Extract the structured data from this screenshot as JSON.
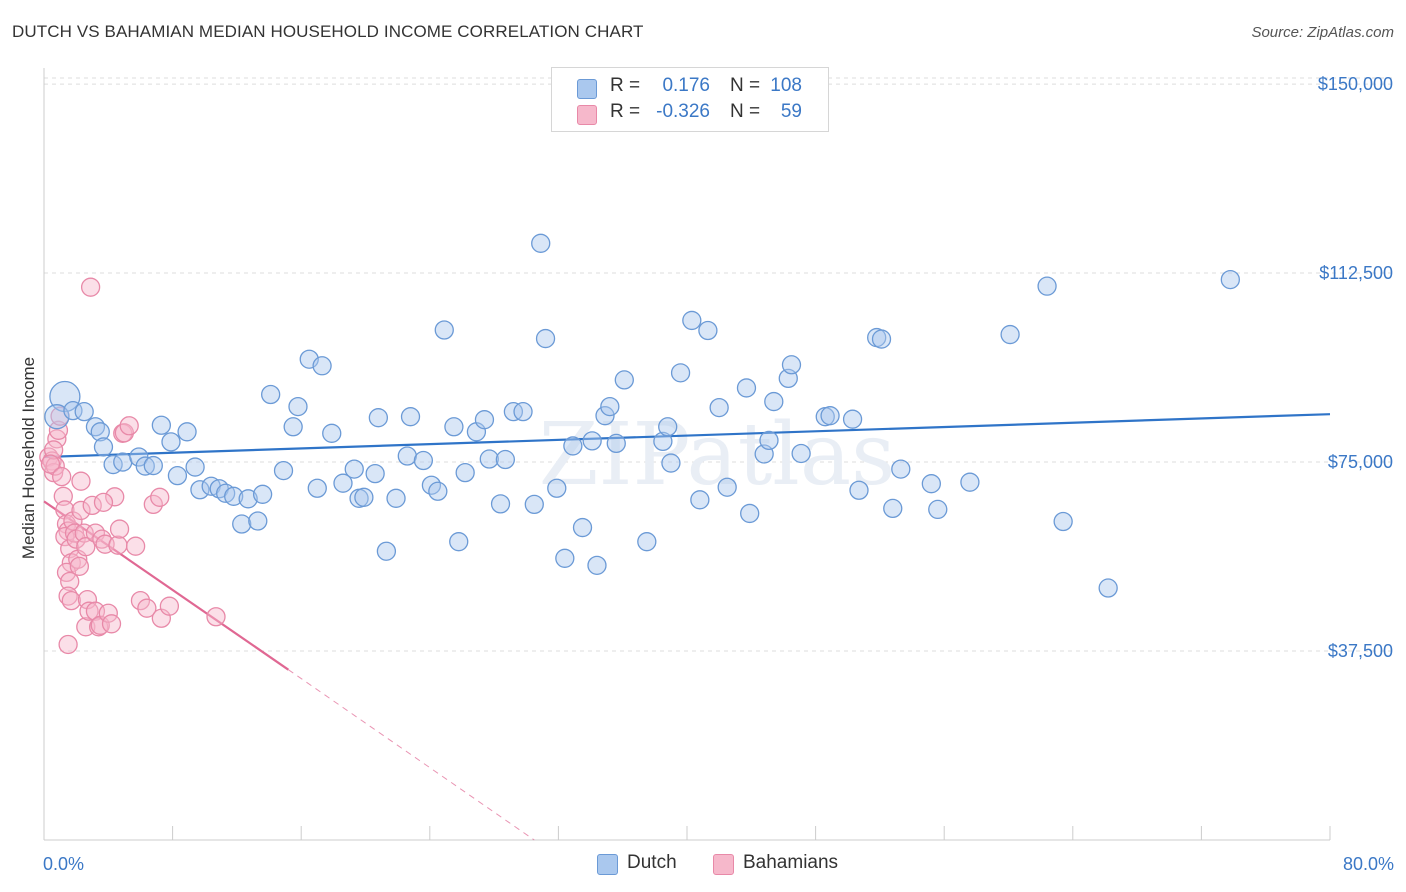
{
  "title": "DUTCH VS BAHAMIAN MEDIAN HOUSEHOLD INCOME CORRELATION CHART",
  "source": "Source: ZipAtlas.com",
  "watermark": "ZIPatlas",
  "legend": {
    "rows": [
      {
        "r_label": "R =",
        "r_value": "0.176",
        "n_label": "N =",
        "n_value": "108"
      },
      {
        "r_label": "R =",
        "r_value": "-0.326",
        "n_label": "N =",
        "n_value": "59"
      }
    ]
  },
  "bottom_legend": {
    "dutch": "Dutch",
    "bahamians": "Bahamians"
  },
  "colors": {
    "dutch_fill": "#aac8ee",
    "dutch_stroke": "#6b9ad6",
    "dutch_line": "#2f74c8",
    "bahamians_fill": "#f6b8cb",
    "bahamians_stroke": "#e889a8",
    "bahamians_line": "#e06893",
    "tick_label": "#3b78c6",
    "grid": "#dddddd"
  },
  "chart_data": {
    "type": "scatter",
    "title": "DUTCH VS BAHAMIAN MEDIAN HOUSEHOLD INCOME CORRELATION CHART",
    "xlabel": "",
    "ylabel": "Median Household Income",
    "xlim": [
      0,
      80
    ],
    "ylim": [
      0,
      152000
    ],
    "x_tick_labels": [
      "0.0%",
      "80.0%"
    ],
    "y_ticks": [
      37500,
      75000,
      112500,
      150000
    ],
    "y_tick_labels": [
      "$37,500",
      "$75,000",
      "$112,500",
      "$150,000"
    ],
    "grid": true,
    "legend_position": "top-center",
    "series": [
      {
        "name": "Dutch",
        "R": 0.176,
        "N": 108,
        "trend": {
          "x": [
            0,
            80
          ],
          "y": [
            76000,
            84500
          ]
        },
        "points": [
          [
            1.3,
            88000,
            3
          ],
          [
            0.8,
            84000,
            2
          ],
          [
            1.8,
            85200,
            1
          ],
          [
            2.5,
            85000,
            1
          ],
          [
            3.2,
            82000,
            1
          ],
          [
            3.5,
            81000,
            1
          ],
          [
            3.7,
            78000,
            1
          ],
          [
            4.3,
            74500,
            1
          ],
          [
            4.9,
            75000,
            1
          ],
          [
            5.9,
            76000,
            1
          ],
          [
            6.3,
            74200,
            1
          ],
          [
            6.8,
            74300,
            1
          ],
          [
            7.3,
            82300,
            1
          ],
          [
            7.9,
            79000,
            1
          ],
          [
            8.3,
            72300,
            1
          ],
          [
            8.9,
            81000,
            1
          ],
          [
            9.4,
            74000,
            1
          ],
          [
            9.7,
            69500,
            1
          ],
          [
            10.4,
            70200,
            1
          ],
          [
            10.9,
            69700,
            1
          ],
          [
            11.3,
            68800,
            1
          ],
          [
            11.8,
            68200,
            1
          ],
          [
            12.3,
            62700,
            1
          ],
          [
            12.7,
            67700,
            1
          ],
          [
            13.3,
            63300,
            1
          ],
          [
            13.6,
            68600,
            1
          ],
          [
            14.1,
            88400,
            1
          ],
          [
            14.9,
            73300,
            1
          ],
          [
            15.5,
            82000,
            1
          ],
          [
            15.8,
            86000,
            1
          ],
          [
            16.5,
            95400,
            1
          ],
          [
            17.0,
            69800,
            1
          ],
          [
            17.3,
            94100,
            1
          ],
          [
            17.9,
            80700,
            1
          ],
          [
            18.6,
            70800,
            1
          ],
          [
            19.3,
            73600,
            1
          ],
          [
            19.6,
            67800,
            1
          ],
          [
            19.9,
            68000,
            1
          ],
          [
            20.6,
            72700,
            1
          ],
          [
            20.8,
            83800,
            1
          ],
          [
            21.3,
            57300,
            1
          ],
          [
            21.9,
            67800,
            1
          ],
          [
            22.6,
            76200,
            1
          ],
          [
            22.8,
            84000,
            1
          ],
          [
            23.6,
            75300,
            1
          ],
          [
            24.1,
            70400,
            1
          ],
          [
            24.5,
            69200,
            1
          ],
          [
            24.9,
            101200,
            1
          ],
          [
            25.5,
            82000,
            1
          ],
          [
            25.8,
            59200,
            1
          ],
          [
            26.2,
            72900,
            1
          ],
          [
            26.9,
            81000,
            1
          ],
          [
            27.4,
            83400,
            1
          ],
          [
            27.7,
            75600,
            1
          ],
          [
            28.4,
            66700,
            1
          ],
          [
            28.7,
            75500,
            1
          ],
          [
            29.2,
            85000,
            1
          ],
          [
            29.8,
            85000,
            1
          ],
          [
            30.5,
            66600,
            1
          ],
          [
            30.9,
            118400,
            1
          ],
          [
            31.2,
            99500,
            1
          ],
          [
            31.9,
            69800,
            1
          ],
          [
            32.4,
            55900,
            1
          ],
          [
            32.9,
            78200,
            1
          ],
          [
            33.5,
            62000,
            1
          ],
          [
            34.1,
            79200,
            1
          ],
          [
            34.4,
            54500,
            1
          ],
          [
            34.9,
            84200,
            1
          ],
          [
            35.2,
            86000,
            1
          ],
          [
            35.6,
            78700,
            1
          ],
          [
            36.1,
            91300,
            1
          ],
          [
            37.5,
            59200,
            1
          ],
          [
            38.5,
            79100,
            1
          ],
          [
            38.8,
            82000,
            1
          ],
          [
            39.0,
            74800,
            1
          ],
          [
            39.6,
            92700,
            1
          ],
          [
            40.3,
            103100,
            1
          ],
          [
            40.8,
            67500,
            1
          ],
          [
            41.3,
            101100,
            1
          ],
          [
            42.0,
            85800,
            1
          ],
          [
            42.5,
            70000,
            1
          ],
          [
            43.7,
            89700,
            1
          ],
          [
            43.9,
            64800,
            1
          ],
          [
            44.8,
            76600,
            1
          ],
          [
            45.1,
            79300,
            1
          ],
          [
            45.4,
            87000,
            1
          ],
          [
            46.3,
            91600,
            1
          ],
          [
            46.5,
            94300,
            1
          ],
          [
            47.1,
            76700,
            1
          ],
          [
            48.6,
            84000,
            1
          ],
          [
            48.9,
            84200,
            1
          ],
          [
            50.3,
            83500,
            1
          ],
          [
            50.7,
            69400,
            1
          ],
          [
            51.8,
            99700,
            1
          ],
          [
            52.1,
            99400,
            1
          ],
          [
            52.8,
            65800,
            1
          ],
          [
            53.3,
            73600,
            1
          ],
          [
            55.2,
            70700,
            1
          ],
          [
            55.6,
            65600,
            1
          ],
          [
            57.6,
            71000,
            1
          ],
          [
            60.1,
            100300,
            1
          ],
          [
            62.4,
            109900,
            1
          ],
          [
            63.4,
            63200,
            1
          ],
          [
            66.2,
            50000,
            1
          ],
          [
            73.8,
            111200,
            1
          ]
        ]
      },
      {
        "name": "Bahamians",
        "R": -0.326,
        "N": 59,
        "trend": {
          "x": [
            0,
            15.2
          ],
          "y": [
            67200,
            33800
          ]
        },
        "trend_dashed": {
          "x": [
            15.2,
            30.5
          ],
          "y": [
            33800,
            0
          ]
        },
        "points": [
          [
            0.3,
            76000,
            1
          ],
          [
            0.5,
            75200,
            1
          ],
          [
            0.6,
            72900,
            1
          ],
          [
            0.7,
            74200,
            1
          ],
          [
            0.8,
            79600,
            1
          ],
          [
            0.9,
            81300,
            1
          ],
          [
            0.6,
            77400,
            1
          ],
          [
            0.4,
            74600,
            1
          ],
          [
            1.0,
            84100,
            1
          ],
          [
            1.1,
            72100,
            1
          ],
          [
            1.2,
            68200,
            1
          ],
          [
            1.3,
            65500,
            1
          ],
          [
            1.4,
            62700,
            1
          ],
          [
            1.5,
            61300,
            1
          ],
          [
            1.3,
            60200,
            1
          ],
          [
            1.6,
            57800,
            1
          ],
          [
            1.7,
            55000,
            1
          ],
          [
            1.4,
            53100,
            1
          ],
          [
            1.6,
            51300,
            1
          ],
          [
            1.5,
            48400,
            1
          ],
          [
            1.7,
            47500,
            1
          ],
          [
            1.8,
            63300,
            1
          ],
          [
            1.9,
            60900,
            1
          ],
          [
            2.0,
            59700,
            1
          ],
          [
            2.1,
            55700,
            1
          ],
          [
            2.2,
            54300,
            1
          ],
          [
            2.3,
            71200,
            1
          ],
          [
            2.3,
            65400,
            1
          ],
          [
            2.5,
            60900,
            1
          ],
          [
            2.6,
            58200,
            1
          ],
          [
            2.7,
            47700,
            1
          ],
          [
            2.6,
            42300,
            1
          ],
          [
            2.8,
            45400,
            1
          ],
          [
            3.0,
            66400,
            1
          ],
          [
            3.2,
            45400,
            1
          ],
          [
            3.2,
            60900,
            1
          ],
          [
            3.4,
            42300,
            1
          ],
          [
            3.5,
            42600,
            1
          ],
          [
            3.6,
            59700,
            1
          ],
          [
            3.8,
            58700,
            1
          ],
          [
            4.0,
            45000,
            1
          ],
          [
            4.2,
            42900,
            1
          ],
          [
            4.4,
            68100,
            1
          ],
          [
            4.6,
            58500,
            1
          ],
          [
            4.7,
            61700,
            1
          ],
          [
            4.9,
            80700,
            1
          ],
          [
            5.0,
            80800,
            1
          ],
          [
            5.3,
            82200,
            1
          ],
          [
            5.7,
            58300,
            1
          ],
          [
            6.0,
            47500,
            1
          ],
          [
            6.4,
            46000,
            1
          ],
          [
            6.8,
            66600,
            1
          ],
          [
            7.2,
            68000,
            1
          ],
          [
            7.3,
            44000,
            1
          ],
          [
            1.5,
            38800,
            1
          ],
          [
            2.9,
            109700,
            1
          ],
          [
            3.7,
            67000,
            1
          ],
          [
            7.8,
            46400,
            1
          ],
          [
            10.7,
            44300,
            1
          ]
        ]
      }
    ]
  }
}
